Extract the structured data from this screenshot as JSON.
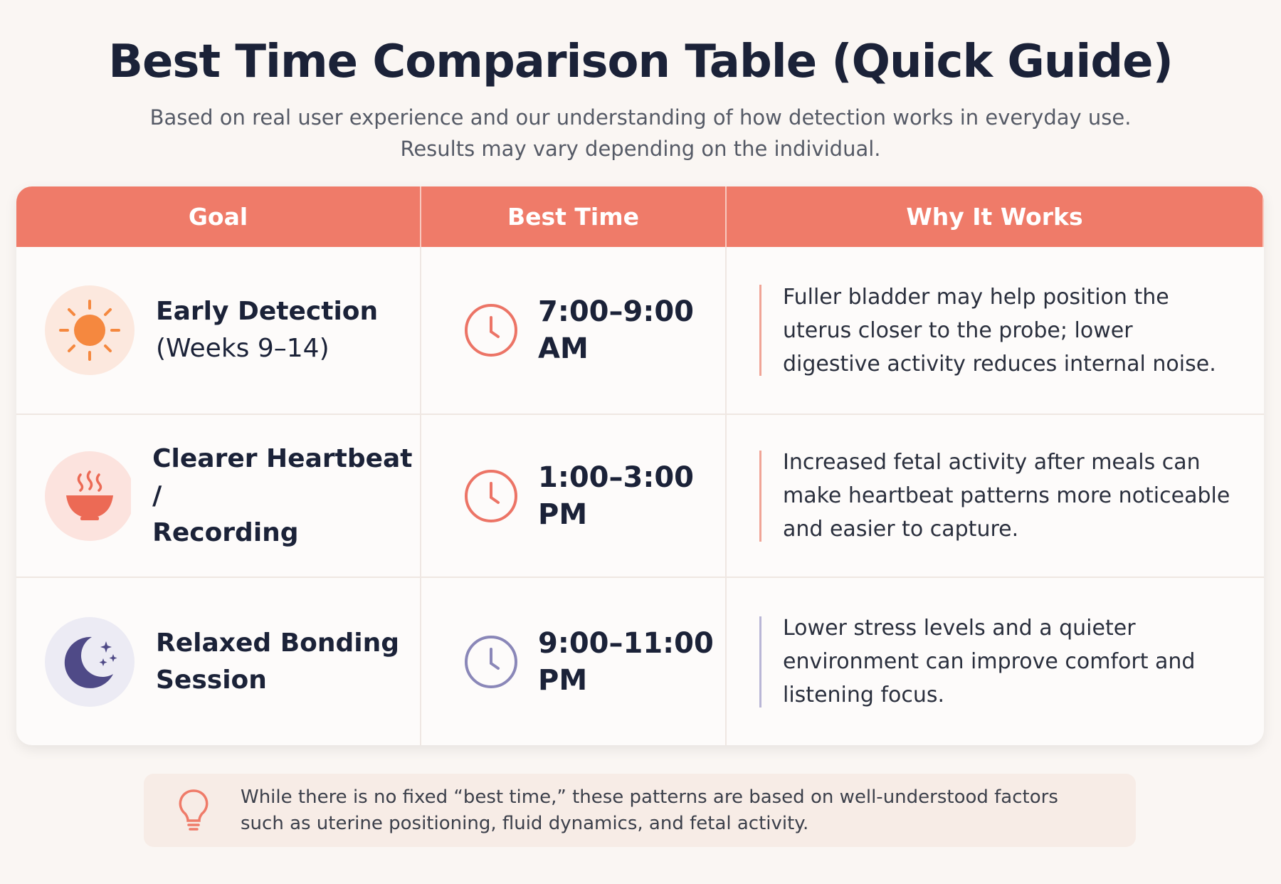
{
  "header": {
    "title": "Best Time Comparison Table (Quick Guide)",
    "subtitle": [
      "Based on real user experience and our understanding of how detection works in everyday use.",
      "Results may vary depending on the individual."
    ]
  },
  "table": {
    "columns": [
      "Goal",
      "Best Time",
      "Why It Works"
    ],
    "rows": [
      {
        "goal": [
          "Early Detection",
          "(Weeks 9–14)"
        ],
        "time": [
          "7:00–9:00",
          "AM"
        ],
        "why": [
          "Fuller bladder may help position the",
          "uterus closer to the probe; lower",
          "digestive activity reduces internal noise."
        ]
      },
      {
        "goal": [
          "Clearer Heartbeat /",
          "Recording"
        ],
        "time": [
          "1:00–3:00",
          "PM"
        ],
        "why": [
          "Increased fetal activity after meals can",
          "make heartbeat patterns more noticeable",
          "and easier to capture."
        ]
      },
      {
        "goal": [
          "Relaxed Bonding",
          "Session"
        ],
        "time": [
          "9:00–11:00",
          "PM"
        ],
        "why": [
          "Lower stress levels and a quieter",
          "environment can improve comfort and",
          "listening focus."
        ]
      }
    ]
  },
  "note": [
    "While there is no fixed “best time,” these patterns are based on well-understood factors",
    "such as uterine positioning, fluid dynamics, and fetal activity."
  ]
}
